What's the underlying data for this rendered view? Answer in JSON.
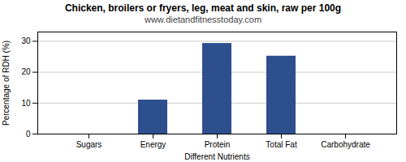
{
  "chart_data": {
    "type": "bar",
    "title": "Chicken, broilers or fryers, leg, meat and skin, raw per 100g",
    "subtitle": "www.dietandfitnesstoday.com",
    "xlabel": "Different Nutrients",
    "ylabel": "Percentage of RDH (%)",
    "categories": [
      "Sugars",
      "Energy",
      "Protein",
      "Total Fat",
      "Carbohydrate"
    ],
    "values": [
      0,
      11,
      29.3,
      25.2,
      0
    ],
    "color": "#2d4f8e",
    "ylim": [
      0,
      33
    ],
    "yticks": [
      0,
      10,
      20,
      30
    ],
    "grid": true
  }
}
